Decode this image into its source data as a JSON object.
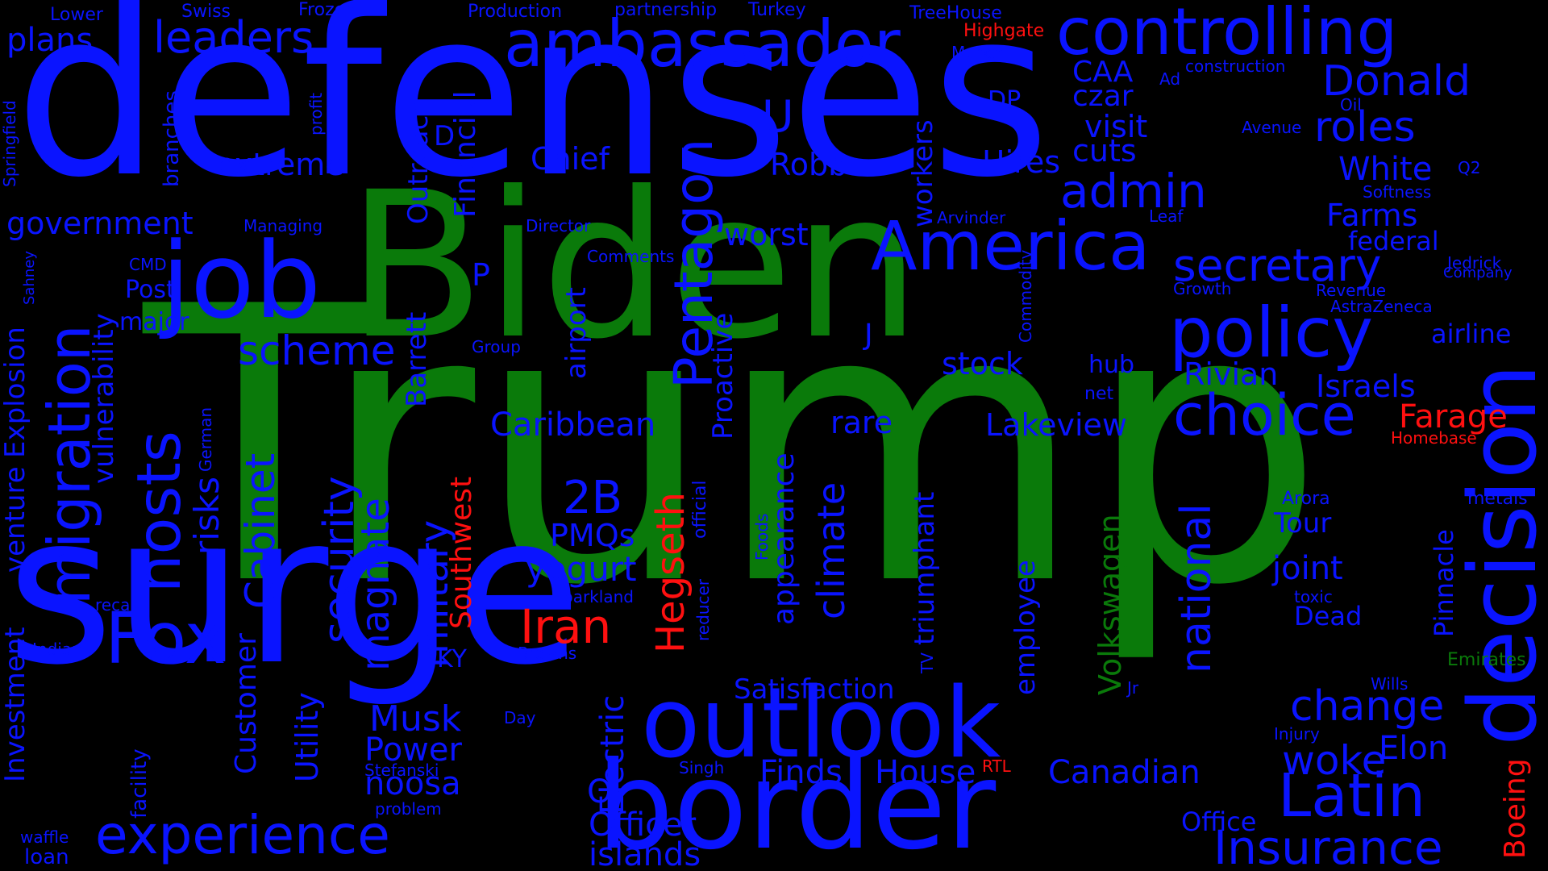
{
  "colors": {
    "background": "#000000",
    "blue": "#0a14ff",
    "green": "#0a7a0a",
    "red": "#ff1010"
  },
  "words": {
    "trump": "Trump",
    "biden": "Biden",
    "defenses": "defenses",
    "surge": "surge",
    "border": "border",
    "outlook": "outlook",
    "decision": "decision",
    "job": "job",
    "controlling": "controlling",
    "ambassador": "ambassador",
    "america": "America",
    "policy": "policy",
    "latin": "Latin",
    "migration": "migration",
    "fox": "Fox",
    "hosts": "hosts",
    "experience": "experience",
    "pentagon": "Pentagon",
    "choice": "choice",
    "insurance": "Insurance",
    "secretary": "secretary",
    "admin": "admin",
    "national": "national",
    "security": "security",
    "cabinet": "Cabinet",
    "customer": "Customer",
    "leaders": "leaders",
    "plans": "plans",
    "donald": "Donald",
    "roles": "roles",
    "scheme": "scheme",
    "military": "military",
    "magnate": "magnate",
    "hegseth": "Hegseth",
    "iran": "Iran",
    "farage": "Farage",
    "volkswagen": "Volkswagen",
    "southwest": "Southwest",
    "boeing": "Boeing",
    "government": "government",
    "extreme": "extreme",
    "chief": "Chief",
    "robb": "Robb",
    "hires": "Hires",
    "cuts": "cuts",
    "visit": "visit",
    "czar": "czar",
    "caa": "CAA",
    "dp": "DP",
    "u": "U",
    "white": "White",
    "farms": "Farms",
    "federal": "federal",
    "airline": "airline",
    "israels": "Israels",
    "rivian": "Rivian",
    "lakeview": "Lakeview",
    "stock": "stock",
    "rare": "rare",
    "caribbean": "Caribbean",
    "two_b": "2B",
    "pmqs": "PMQs",
    "yogurt": "yogurt",
    "musk": "Musk",
    "power": "Power",
    "noosa": "noosa",
    "officer": "Officer",
    "islands": "islands",
    "finds": "Finds",
    "house": "House",
    "satisfaction": "Satisfaction",
    "canadian": "Canadian",
    "woke": "woke",
    "change": "change",
    "elon": "Elon",
    "office": "Office",
    "joint": "joint",
    "tour": "Tour",
    "dead": "Dead",
    "worst": "worst",
    "climate": "climate",
    "appearance": "appearance",
    "triumphant": "triumphant",
    "employee": "employee",
    "workers": "workers",
    "proactive": "Proactive",
    "airport": "airport",
    "financial": "Financial",
    "outreach": "Outreach",
    "barrett": "Barrett",
    "d": "D",
    "p": "P",
    "j": "J",
    "risks": "risks",
    "vulnerability": "vulnerability",
    "post": "Post",
    "major": "major",
    "utility": "Utility",
    "electric": "Electric",
    "o": "O",
    "investment": "Investment",
    "venture": "venture",
    "explosion": "Explosion",
    "branches": "branches",
    "pinnacle": "Pinnacle",
    "hub": "hub",
    "net": "net",
    "kY": "KY",
    "lower": "Lower",
    "swiss": "Swiss",
    "frozen": "Frozen",
    "production": "Production",
    "partnership": "partnership",
    "turkey": "Turkey",
    "treehouse": "TreeHouse",
    "highgate": "Highgate",
    "market": "Market",
    "construction": "construction",
    "ad": "Ad",
    "oil": "Oil",
    "avenue": "Avenue",
    "q2": "Q2",
    "softness": "Softness",
    "arvinder": "Arvinder",
    "leaf": "Leaf",
    "growth": "Growth",
    "revenue": "Revenue",
    "astrazeneca": "AstraZeneca",
    "jedrick": "Jedrick",
    "company": "Company",
    "homebase": "Homebase",
    "arora": "Arora",
    "metals": "metals",
    "toxic": "toxic",
    "emirates": "Emirates",
    "wills": "Wills",
    "injury": "Injury",
    "jr": "Jr",
    "rtl": "RTL",
    "singh": "Singh",
    "day": "Day",
    "stefanski": "Stefanski",
    "problem": "problem",
    "waffle": "waffle",
    "loan": "loan",
    "recall": "recall",
    "indian": "Indian",
    "facility": "facility",
    "german": "German",
    "cmd": "CMD",
    "managing": "Managing",
    "director": "Director",
    "comments": "Comments",
    "group": "Group",
    "parkland": "parkland",
    "browns": "Browns",
    "reducer": "reducer",
    "official": "official",
    "foods": "Foods",
    "tv": "TV",
    "commodity": "Commodity",
    "springfield": "Springfield",
    "sahney": "Sahney",
    "profit": "profit"
  }
}
